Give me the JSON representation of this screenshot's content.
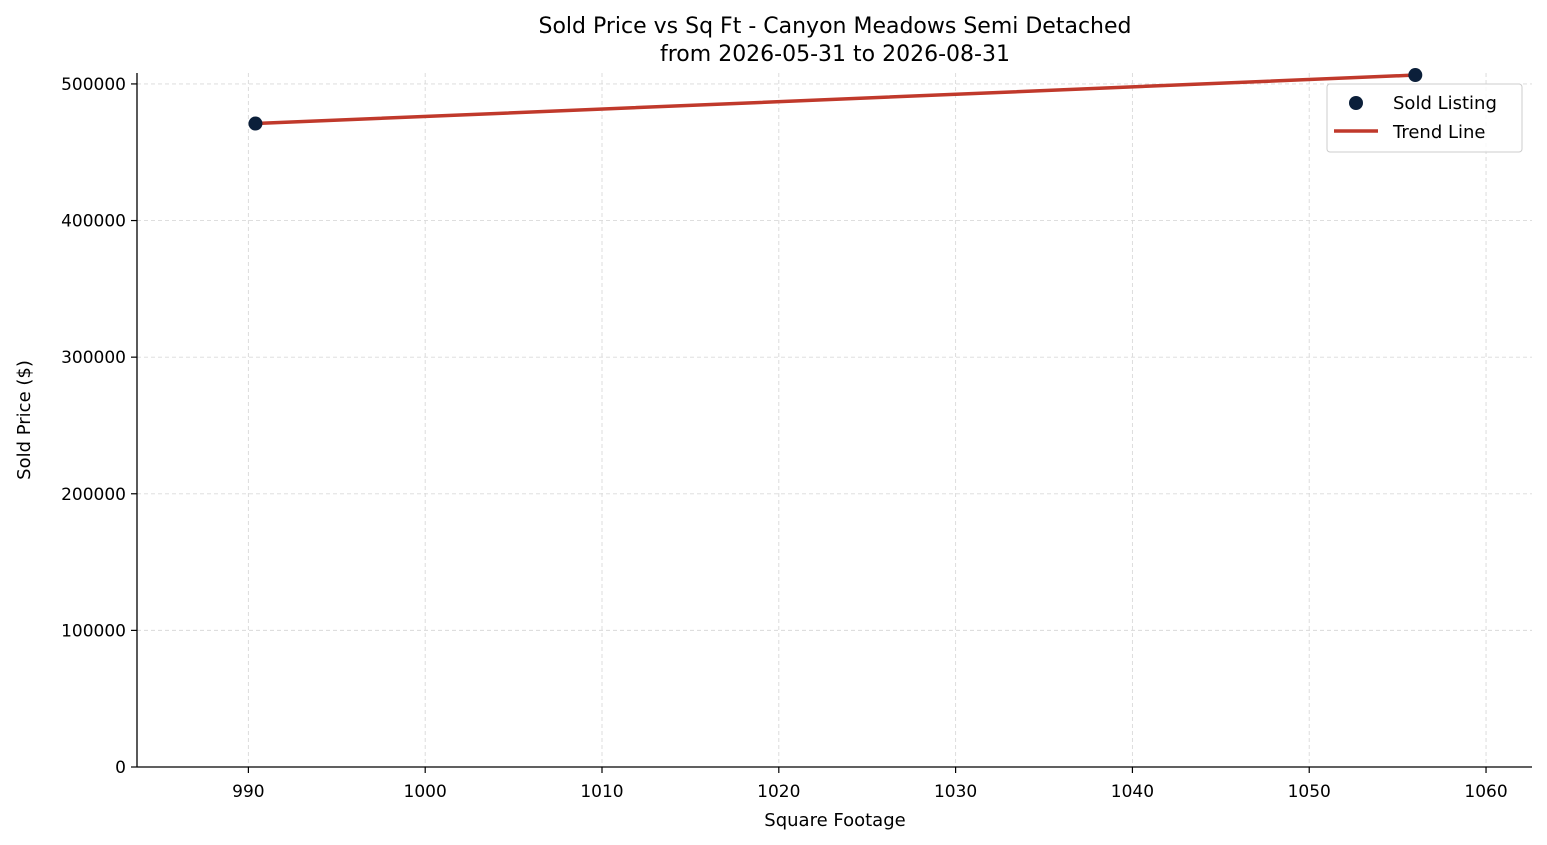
{
  "chart_data": {
    "type": "scatter",
    "title": "Sold Price vs Sq Ft - Canyon Meadows Semi Detached",
    "subtitle": "from 2026-05-31 to 2026-08-31",
    "xlabel": "Square Footage",
    "ylabel": "Sold Price ($)",
    "xlim": [
      983.7,
      1062.6
    ],
    "ylim": [
      0,
      508000
    ],
    "xticks": [
      990,
      1000,
      1010,
      1020,
      1030,
      1040,
      1050,
      1060
    ],
    "yticks": [
      0,
      100000,
      200000,
      300000,
      400000,
      500000
    ],
    "grid": true,
    "legend_position": "top-right",
    "series": [
      {
        "name": "Sold Listing",
        "kind": "scatter",
        "color": "#0b1f3a",
        "points": [
          {
            "x": 990.4,
            "y": 471000
          },
          {
            "x": 1056.0,
            "y": 506500
          }
        ]
      },
      {
        "name": "Trend Line",
        "kind": "line",
        "color": "#c0392b",
        "points": [
          {
            "x": 990.4,
            "y": 471000
          },
          {
            "x": 1056.0,
            "y": 506500
          }
        ]
      }
    ]
  }
}
